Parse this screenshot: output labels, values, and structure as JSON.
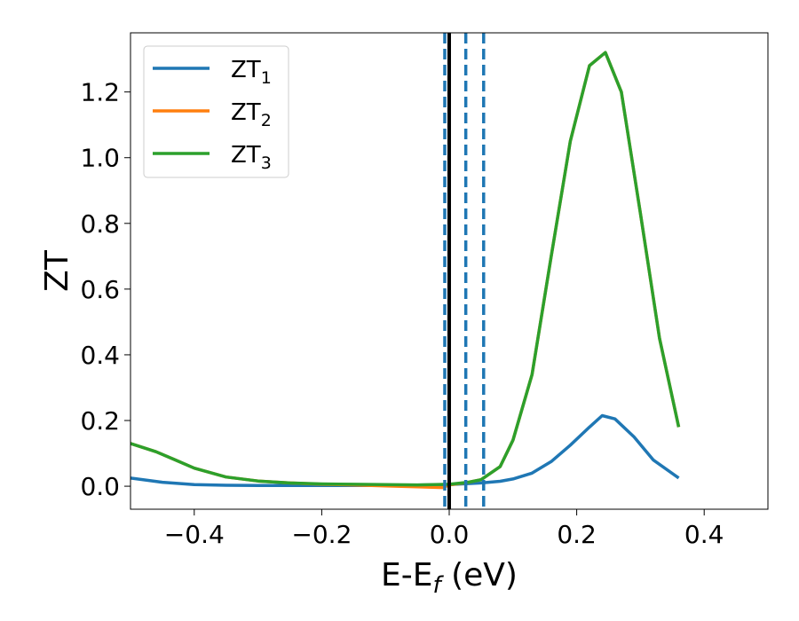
{
  "chart_data": {
    "type": "line",
    "xlabel": "E-E",
    "xlabel_sub": "f",
    "xlabel_unit": " (eV)",
    "ylabel": "ZT",
    "xlim": [
      -0.5,
      0.5
    ],
    "ylim": [
      -0.07,
      1.38
    ],
    "xticks": [
      -0.4,
      -0.2,
      0.0,
      0.2,
      0.4
    ],
    "xtick_labels": [
      "−0.4",
      "−0.2",
      "0.0",
      "0.2",
      "0.4"
    ],
    "yticks": [
      0.0,
      0.2,
      0.4,
      0.6,
      0.8,
      1.0,
      1.2
    ],
    "ytick_labels": [
      "0.0",
      "0.2",
      "0.4",
      "0.6",
      "0.8",
      "1.0",
      "1.2"
    ],
    "grid": false,
    "legend_position": "top-left",
    "series": [
      {
        "name": "ZT",
        "sub": "1",
        "color": "#1f77b4",
        "x": [
          -0.5,
          -0.45,
          -0.4,
          -0.35,
          -0.3,
          -0.2,
          -0.1,
          0.0,
          0.05,
          0.08,
          0.1,
          0.13,
          0.16,
          0.19,
          0.22,
          0.24,
          0.26,
          0.29,
          0.32,
          0.36
        ],
        "y": [
          0.025,
          0.012,
          0.005,
          0.003,
          0.002,
          0.002,
          0.002,
          0.005,
          0.01,
          0.015,
          0.022,
          0.04,
          0.075,
          0.125,
          0.18,
          0.215,
          0.205,
          0.15,
          0.08,
          0.025
        ]
      },
      {
        "name": "ZT",
        "sub": "2",
        "color": "#ff7f0e",
        "x": [
          -0.5,
          -0.46,
          -0.43,
          -0.4,
          -0.35,
          -0.3,
          -0.25,
          -0.2,
          -0.15,
          -0.1,
          -0.05,
          -0.01,
          0.0,
          0.03,
          0.05,
          0.08,
          0.1,
          0.13,
          0.16,
          0.19,
          0.22,
          0.245,
          0.27,
          0.3,
          0.33,
          0.36
        ],
        "y": [
          0.13,
          0.105,
          0.08,
          0.055,
          0.028,
          0.016,
          0.01,
          0.006,
          0.004,
          0.001,
          -0.002,
          -0.004,
          0.004,
          0.012,
          0.02,
          0.06,
          0.14,
          0.34,
          0.7,
          1.05,
          1.28,
          1.32,
          1.2,
          0.83,
          0.45,
          0.18
        ]
      },
      {
        "name": "ZT",
        "sub": "3",
        "color": "#2ca02c",
        "x": [
          -0.5,
          -0.46,
          -0.43,
          -0.4,
          -0.35,
          -0.3,
          -0.25,
          -0.2,
          -0.15,
          -0.1,
          -0.05,
          0.0,
          0.03,
          0.05,
          0.08,
          0.1,
          0.13,
          0.16,
          0.19,
          0.22,
          0.245,
          0.27,
          0.3,
          0.33,
          0.36
        ],
        "y": [
          0.13,
          0.105,
          0.08,
          0.055,
          0.028,
          0.016,
          0.01,
          0.007,
          0.006,
          0.005,
          0.004,
          0.006,
          0.012,
          0.02,
          0.06,
          0.14,
          0.34,
          0.7,
          1.05,
          1.28,
          1.32,
          1.2,
          0.83,
          0.45,
          0.18
        ]
      }
    ],
    "vlines": [
      {
        "x": 0.0,
        "style": "solid",
        "color": "#000000"
      },
      {
        "x": -0.007,
        "style": "dashed",
        "color": "#1f77b4"
      },
      {
        "x": 0.026,
        "style": "dashed",
        "color": "#1f77b4"
      },
      {
        "x": 0.054,
        "style": "dashed",
        "color": "#1f77b4"
      }
    ]
  }
}
